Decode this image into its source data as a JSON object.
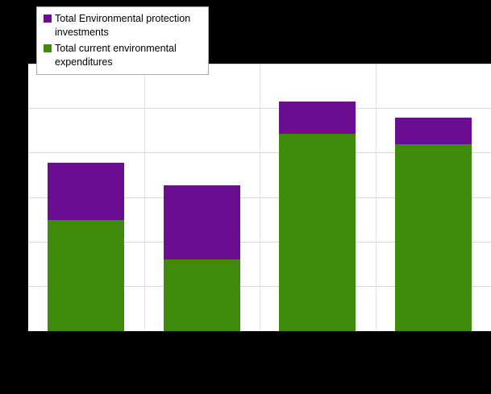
{
  "window": {
    "background_color": "#000000"
  },
  "chart_data": {
    "type": "bar",
    "stacked": true,
    "title": "",
    "xlabel": "",
    "ylabel": "",
    "categories": [
      "",
      "",
      "",
      ""
    ],
    "series": [
      {
        "name": "Total current environmental expenditures",
        "color": "#3e8b0c",
        "values": [
          2500,
          1610,
          4440,
          4200
        ]
      },
      {
        "name": "Total Environmental protection investments",
        "color": "#6a0d91",
        "values": [
          1290,
          1670,
          720,
          600
        ]
      }
    ],
    "ylim": [
      0,
      6000
    ],
    "gridline_step": 1000,
    "grid": true,
    "legend_position": "top-left",
    "legend_order": [
      "Total Environmental protection investments",
      "Total current environmental expenditures"
    ],
    "plot_background": "#ffffff",
    "gridline_color": "#d9d9d9"
  }
}
